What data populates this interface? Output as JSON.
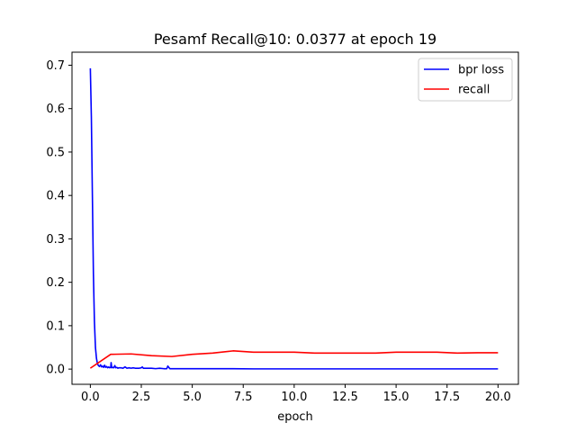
{
  "chart_data": {
    "type": "line",
    "title": "Pesamf Recall@10: 0.0377 at epoch 19",
    "xlabel": "epoch",
    "ylabel": "",
    "xlim": [
      -0.9,
      21.0
    ],
    "ylim": [
      -0.035,
      0.73
    ],
    "xticks": [
      0.0,
      2.5,
      5.0,
      7.5,
      10.0,
      12.5,
      15.0,
      17.5,
      20.0
    ],
    "xtick_labels": [
      "0.0",
      "2.5",
      "5.0",
      "7.5",
      "10.0",
      "12.5",
      "15.0",
      "17.5",
      "20.0"
    ],
    "yticks": [
      0.0,
      0.1,
      0.2,
      0.3,
      0.4,
      0.5,
      0.6,
      0.7
    ],
    "ytick_labels": [
      "0.0",
      "0.1",
      "0.2",
      "0.3",
      "0.4",
      "0.5",
      "0.6",
      "0.7"
    ],
    "grid": false,
    "legend_position": "top-right",
    "series": [
      {
        "name": "bpr loss",
        "color": "#0000ff",
        "x": [
          0.0,
          0.05,
          0.1,
          0.15,
          0.2,
          0.25,
          0.3,
          0.35,
          0.4,
          0.45,
          0.5,
          0.55,
          0.6,
          0.65,
          0.7,
          0.75,
          0.8,
          0.85,
          0.9,
          0.95,
          1.0,
          1.02,
          1.05,
          1.1,
          1.15,
          1.2,
          1.25,
          1.3,
          1.35,
          1.4,
          1.5,
          1.6,
          1.7,
          1.8,
          1.9,
          2.0,
          2.1,
          2.2,
          2.3,
          2.4,
          2.5,
          2.55,
          2.6,
          2.7,
          2.8,
          2.9,
          3.0,
          3.2,
          3.4,
          3.6,
          3.75,
          3.8,
          3.9,
          4.0,
          4.2,
          4.5,
          5.0,
          6.0,
          7.0,
          8.0,
          9.0,
          10.0,
          11.0,
          12.0,
          13.0,
          14.0,
          15.0,
          16.0,
          17.0,
          18.0,
          19.0,
          20.0
        ],
        "values": [
          0.693,
          0.58,
          0.4,
          0.22,
          0.11,
          0.05,
          0.025,
          0.012,
          0.008,
          0.006,
          0.01,
          0.005,
          0.007,
          0.004,
          0.009,
          0.004,
          0.006,
          0.003,
          0.005,
          0.003,
          0.004,
          0.015,
          0.003,
          0.004,
          0.003,
          0.008,
          0.003,
          0.004,
          0.002,
          0.003,
          0.003,
          0.002,
          0.005,
          0.002,
          0.003,
          0.002,
          0.003,
          0.002,
          0.002,
          0.002,
          0.003,
          0.005,
          0.002,
          0.002,
          0.002,
          0.002,
          0.002,
          0.001,
          0.002,
          0.001,
          0.001,
          0.007,
          0.001,
          0.001,
          0.001,
          0.001,
          0.001,
          0.001,
          0.001,
          0.0005,
          0.0005,
          0.0005,
          0.0005,
          0.0005,
          0.0005,
          0.0005,
          0.0005,
          0.0005,
          0.0005,
          0.0005,
          0.0005,
          0.0005
        ]
      },
      {
        "name": "recall",
        "color": "#ff0000",
        "x": [
          0,
          1,
          2,
          3,
          4,
          5,
          6,
          7,
          8,
          9,
          10,
          11,
          12,
          13,
          14,
          15,
          16,
          17,
          18,
          19,
          20
        ],
        "values": [
          0.002,
          0.034,
          0.035,
          0.031,
          0.029,
          0.034,
          0.037,
          0.042,
          0.039,
          0.039,
          0.039,
          0.037,
          0.037,
          0.037,
          0.037,
          0.039,
          0.039,
          0.039,
          0.037,
          0.0377,
          0.0377
        ]
      }
    ]
  }
}
